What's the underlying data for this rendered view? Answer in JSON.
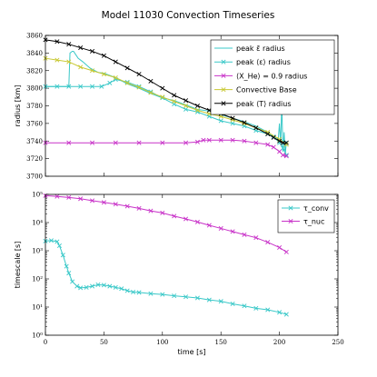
{
  "title": "Model 11030 Convection Timeseries",
  "chart_data": [
    {
      "type": "line",
      "xlabel": "",
      "ylabel": "radius [km]",
      "xlim": [
        0,
        250
      ],
      "ylim": [
        3700,
        3860
      ],
      "x_ticks": [
        0,
        50,
        100,
        150,
        200,
        250
      ],
      "y_ticks": [
        3700,
        3720,
        3740,
        3760,
        3780,
        3800,
        3820,
        3840,
        3860
      ],
      "legend_position": "top-right",
      "series": [
        {
          "name": "peak ε̄ radius",
          "color": "#39c8c8",
          "marker": "none",
          "points": [
            [
              0,
              3802
            ],
            [
              20,
              3802
            ],
            [
              21,
              3840
            ],
            [
              23,
              3842
            ],
            [
              24,
              3842
            ],
            [
              26,
              3838
            ],
            [
              28,
              3834
            ],
            [
              32,
              3830
            ],
            [
              38,
              3823
            ],
            [
              45,
              3818
            ],
            [
              50,
              3817
            ],
            [
              60,
              3812
            ],
            [
              70,
              3805
            ],
            [
              80,
              3800
            ],
            [
              90,
              3794
            ],
            [
              100,
              3789
            ],
            [
              110,
              3786
            ],
            [
              120,
              3781
            ],
            [
              130,
              3776
            ],
            [
              140,
              3774
            ],
            [
              150,
              3770
            ],
            [
              160,
              3766
            ],
            [
              170,
              3762
            ],
            [
              180,
              3757
            ],
            [
              190,
              3750
            ],
            [
              195,
              3745
            ],
            [
              199,
              3742
            ],
            [
              200,
              3760
            ],
            [
              201,
              3738
            ],
            [
              202,
              3782
            ],
            [
              203,
              3728
            ],
            [
              204,
              3750
            ],
            [
              205,
              3725
            ],
            [
              206,
              3740
            ]
          ]
        },
        {
          "name": "peak ⟨ε⟩ radius",
          "color": "#39c8c8",
          "marker": "x",
          "points": [
            [
              0,
              3802
            ],
            [
              10,
              3802
            ],
            [
              20,
              3802
            ],
            [
              30,
              3802
            ],
            [
              40,
              3802
            ],
            [
              48,
              3802
            ],
            [
              55,
              3806
            ],
            [
              60,
              3810
            ],
            [
              70,
              3807
            ],
            [
              80,
              3802
            ],
            [
              90,
              3796
            ],
            [
              100,
              3789
            ],
            [
              110,
              3782
            ],
            [
              120,
              3776
            ],
            [
              130,
              3773
            ],
            [
              140,
              3768
            ],
            [
              150,
              3763
            ],
            [
              160,
              3760
            ],
            [
              170,
              3757
            ],
            [
              180,
              3752
            ],
            [
              190,
              3748
            ],
            [
              195,
              3745
            ],
            [
              200,
              3738
            ],
            [
              203,
              3732
            ],
            [
              206,
              3724
            ]
          ]
        },
        {
          "name": "⟨X_He⟩ = 0.9 radius",
          "color": "#c832c8",
          "marker": "x",
          "points": [
            [
              0,
              3738
            ],
            [
              20,
              3738
            ],
            [
              40,
              3738
            ],
            [
              60,
              3738
            ],
            [
              80,
              3738
            ],
            [
              100,
              3738
            ],
            [
              120,
              3738
            ],
            [
              130,
              3739
            ],
            [
              135,
              3741
            ],
            [
              140,
              3741
            ],
            [
              150,
              3741
            ],
            [
              160,
              3741
            ],
            [
              170,
              3740
            ],
            [
              180,
              3738
            ],
            [
              190,
              3736
            ],
            [
              195,
              3733
            ],
            [
              200,
              3728
            ],
            [
              203,
              3724
            ],
            [
              206,
              3723
            ]
          ]
        },
        {
          "name": "Convective Base",
          "color": "#c8c832",
          "marker": "x",
          "points": [
            [
              0,
              3834
            ],
            [
              10,
              3832
            ],
            [
              20,
              3830
            ],
            [
              30,
              3824
            ],
            [
              40,
              3820
            ],
            [
              50,
              3816
            ],
            [
              60,
              3812
            ],
            [
              70,
              3806
            ],
            [
              80,
              3801
            ],
            [
              90,
              3795
            ],
            [
              100,
              3790
            ],
            [
              110,
              3785
            ],
            [
              120,
              3780
            ],
            [
              130,
              3775
            ],
            [
              140,
              3771
            ],
            [
              150,
              3768
            ],
            [
              160,
              3764
            ],
            [
              170,
              3760
            ],
            [
              180,
              3755
            ],
            [
              190,
              3750
            ],
            [
              200,
              3742
            ],
            [
              206,
              3736
            ]
          ]
        },
        {
          "name": "peak ⟨T⟩ radius",
          "color": "#000000",
          "marker": "x",
          "points": [
            [
              0,
              3855
            ],
            [
              10,
              3853
            ],
            [
              20,
              3850
            ],
            [
              30,
              3846
            ],
            [
              40,
              3842
            ],
            [
              50,
              3837
            ],
            [
              60,
              3830
            ],
            [
              70,
              3823
            ],
            [
              80,
              3816
            ],
            [
              90,
              3808
            ],
            [
              100,
              3800
            ],
            [
              110,
              3792
            ],
            [
              120,
              3786
            ],
            [
              130,
              3780
            ],
            [
              140,
              3775
            ],
            [
              150,
              3771
            ],
            [
              160,
              3766
            ],
            [
              170,
              3761
            ],
            [
              180,
              3755
            ],
            [
              190,
              3748
            ],
            [
              195,
              3744
            ],
            [
              200,
              3740
            ],
            [
              203,
              3738
            ],
            [
              206,
              3738
            ]
          ]
        }
      ]
    },
    {
      "type": "line",
      "xlabel": "time [s]",
      "ylabel": "timescale [s]",
      "xlim": [
        0,
        250
      ],
      "ylim": [
        1,
        100000
      ],
      "yscale": "log",
      "x_ticks": [
        0,
        50,
        100,
        150,
        200,
        250
      ],
      "x_tick_labels": [
        "0",
        "50",
        "100",
        "150",
        "200",
        "250"
      ],
      "y_ticks": [
        1,
        10,
        100,
        1000,
        10000,
        100000
      ],
      "y_tick_labels": [
        "10⁰",
        "10¹",
        "10²",
        "10³",
        "10⁴",
        "10⁵"
      ],
      "legend_position": "top-right",
      "series": [
        {
          "name": "τ_conv",
          "color": "#39c8c8",
          "marker": "x",
          "points": [
            [
              0,
              2200
            ],
            [
              5,
              2300
            ],
            [
              10,
              2100
            ],
            [
              12,
              1500
            ],
            [
              15,
              700
            ],
            [
              18,
              280
            ],
            [
              20,
              160
            ],
            [
              23,
              80
            ],
            [
              27,
              55
            ],
            [
              30,
              48
            ],
            [
              35,
              50
            ],
            [
              40,
              55
            ],
            [
              45,
              62
            ],
            [
              50,
              60
            ],
            [
              55,
              55
            ],
            [
              60,
              50
            ],
            [
              65,
              45
            ],
            [
              70,
              38
            ],
            [
              75,
              34
            ],
            [
              80,
              33
            ],
            [
              90,
              30
            ],
            [
              100,
              28
            ],
            [
              110,
              25
            ],
            [
              120,
              23
            ],
            [
              130,
              21
            ],
            [
              140,
              18
            ],
            [
              150,
              16
            ],
            [
              160,
              13
            ],
            [
              170,
              11
            ],
            [
              180,
              9
            ],
            [
              190,
              8
            ],
            [
              200,
              6.5
            ],
            [
              206,
              5.5
            ]
          ]
        },
        {
          "name": "τ_nuc",
          "color": "#c832c8",
          "marker": "x",
          "points": [
            [
              0,
              90000
            ],
            [
              10,
              85000
            ],
            [
              20,
              78000
            ],
            [
              30,
              70000
            ],
            [
              40,
              60000
            ],
            [
              50,
              52000
            ],
            [
              60,
              45000
            ],
            [
              70,
              38000
            ],
            [
              80,
              32000
            ],
            [
              90,
              26000
            ],
            [
              100,
              22000
            ],
            [
              110,
              17000
            ],
            [
              120,
              13500
            ],
            [
              130,
              10500
            ],
            [
              140,
              8000
            ],
            [
              150,
              6200
            ],
            [
              160,
              4800
            ],
            [
              170,
              3700
            ],
            [
              180,
              2900
            ],
            [
              190,
              2000
            ],
            [
              200,
              1300
            ],
            [
              206,
              900
            ]
          ]
        }
      ]
    }
  ]
}
